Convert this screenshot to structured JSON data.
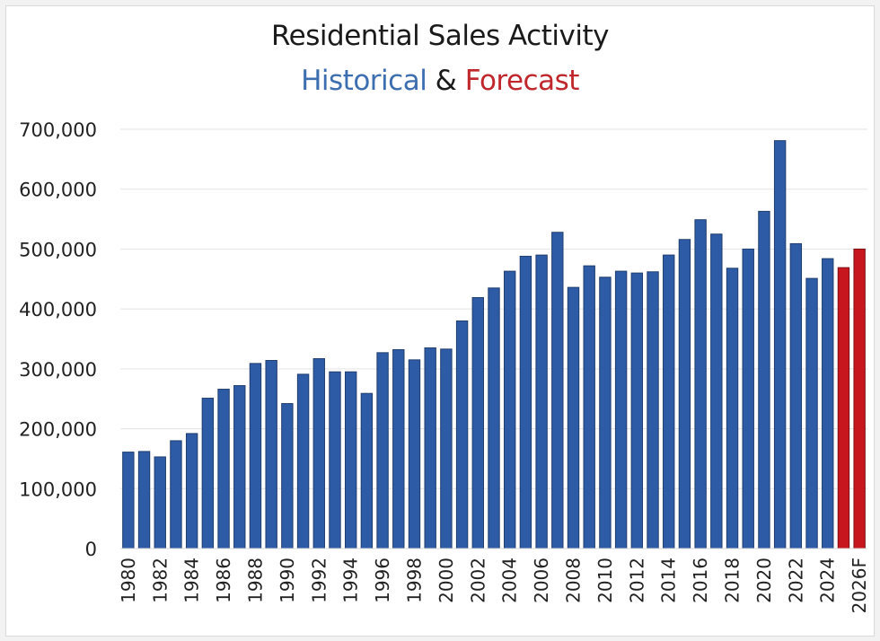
{
  "chart_data": {
    "type": "bar",
    "title": "Residential Sales Activity",
    "subtitle": {
      "historical_label": "Historical",
      "connector": "&",
      "forecast_label": "Forecast"
    },
    "xlabel": "",
    "ylabel": "",
    "ylim": [
      0,
      700000
    ],
    "yticks": [
      0,
      100000,
      200000,
      300000,
      400000,
      500000,
      600000,
      700000
    ],
    "ytick_labels": [
      "0",
      "100,000",
      "200,000",
      "300,000",
      "400,000",
      "500,000",
      "600,000",
      "700,000"
    ],
    "grid": true,
    "legend": "none",
    "colors": {
      "historical": "#2e5ba6",
      "forecast": "#c8161e",
      "historical_text": "#3d6fb0",
      "forecast_text": "#c0272d",
      "grid": "#e3e3e3"
    },
    "categories": [
      "1980",
      "1981",
      "1982",
      "1983",
      "1984",
      "1985",
      "1986",
      "1987",
      "1988",
      "1989",
      "1990",
      "1991",
      "1992",
      "1993",
      "1994",
      "1995",
      "1996",
      "1997",
      "1998",
      "1999",
      "2000",
      "2001",
      "2002",
      "2003",
      "2004",
      "2005",
      "2006",
      "2007",
      "2008",
      "2009",
      "2010",
      "2011",
      "2012",
      "2013",
      "2014",
      "2015",
      "2016",
      "2017",
      "2018",
      "2019",
      "2020",
      "2021",
      "2022",
      "2023",
      "2024",
      "2025",
      "2026F"
    ],
    "visible_xtick_labels": [
      "1980",
      "1982",
      "1984",
      "1986",
      "1988",
      "1990",
      "1992",
      "1994",
      "1996",
      "1998",
      "2000",
      "2002",
      "2004",
      "2006",
      "2008",
      "2010",
      "2012",
      "2014",
      "2016",
      "2018",
      "2020",
      "2022",
      "2024",
      "2026F"
    ],
    "series": [
      {
        "name": "Residential Sales",
        "values": [
          161000,
          162000,
          153000,
          180000,
          192000,
          251000,
          266000,
          272000,
          309000,
          314000,
          242000,
          291000,
          317000,
          295000,
          295000,
          259000,
          327000,
          332000,
          315000,
          335000,
          333000,
          380000,
          419000,
          435000,
          463000,
          488000,
          490000,
          528000,
          436000,
          472000,
          453000,
          463000,
          460000,
          462000,
          490000,
          516000,
          549000,
          525000,
          468000,
          500000,
          563000,
          681000,
          509000,
          451000,
          484000,
          469000,
          500000
        ],
        "kind": [
          "historical",
          "historical",
          "historical",
          "historical",
          "historical",
          "historical",
          "historical",
          "historical",
          "historical",
          "historical",
          "historical",
          "historical",
          "historical",
          "historical",
          "historical",
          "historical",
          "historical",
          "historical",
          "historical",
          "historical",
          "historical",
          "historical",
          "historical",
          "historical",
          "historical",
          "historical",
          "historical",
          "historical",
          "historical",
          "historical",
          "historical",
          "historical",
          "historical",
          "historical",
          "historical",
          "historical",
          "historical",
          "historical",
          "historical",
          "historical",
          "historical",
          "historical",
          "historical",
          "historical",
          "historical",
          "forecast",
          "forecast"
        ]
      }
    ]
  }
}
